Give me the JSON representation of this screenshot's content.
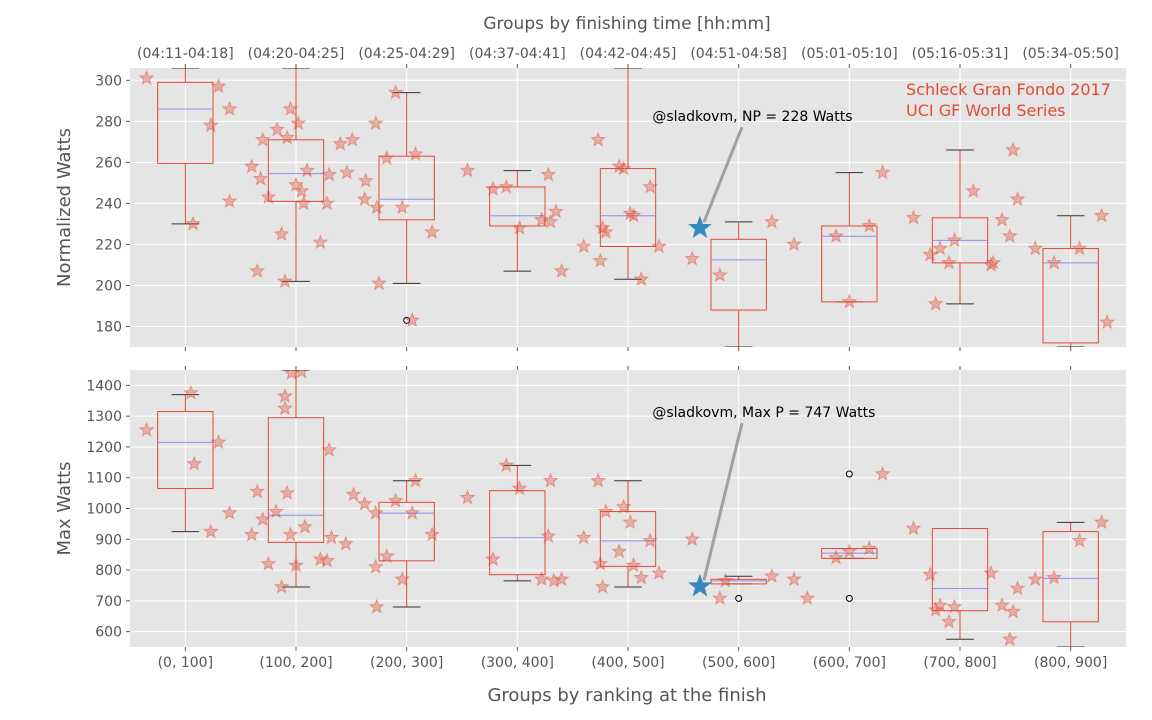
{
  "figure": {
    "top_title": "Groups by finishing time [hh:mm]",
    "bottom_title": "Groups by ranking at the finish",
    "annotation_title_line1": "Schleck Gran Fondo 2017",
    "annotation_title_line2": "UCI GF World Series"
  },
  "chart_data": [
    {
      "type": "box",
      "panel": "top",
      "ylabel": "Normalized Watts",
      "ylim": [
        170,
        306
      ],
      "yticks": [
        180,
        200,
        220,
        240,
        260,
        280,
        300
      ],
      "categories": [
        "(0, 100]",
        "(100, 200]",
        "(200, 300]",
        "(300, 400]",
        "(400, 500]",
        "(500, 600]",
        "(600, 700]",
        "(700, 800]",
        "(800, 900]"
      ],
      "top_categories": [
        "(04:11-04:18]",
        "(04:20-04:25]",
        "(04:25-04:29]",
        "(04:37-04:41]",
        "(04:42-04:45]",
        "(04:51-04:58]",
        "(05:01-05:10]",
        "(05:16-05:31]",
        "(05:34-05:50]"
      ],
      "boxes": [
        {
          "whislo": 230,
          "q1": 259.5,
          "med": 286,
          "q3": 299,
          "whishi": 306,
          "fliers": []
        },
        {
          "whislo": 202,
          "q1": 241,
          "med": 254.5,
          "q3": 271,
          "whishi": 306,
          "fliers": []
        },
        {
          "whislo": 201,
          "q1": 232,
          "med": 242,
          "q3": 263,
          "whishi": 294,
          "fliers": [
            183
          ]
        },
        {
          "whislo": 207,
          "q1": 229,
          "med": 234,
          "q3": 248,
          "whishi": 256,
          "fliers": []
        },
        {
          "whislo": 203,
          "q1": 219,
          "med": 234,
          "q3": 257,
          "whishi": 306,
          "fliers": []
        },
        {
          "whislo": 170,
          "q1": 188,
          "med": 212.5,
          "q3": 222.5,
          "whishi": 231,
          "fliers": []
        },
        {
          "whislo": 192,
          "q1": 192,
          "med": 224,
          "q3": 229,
          "whishi": 255,
          "fliers": []
        },
        {
          "whislo": 191,
          "q1": 211,
          "med": 222,
          "q3": 233,
          "whishi": 266,
          "fliers": []
        },
        {
          "whislo": 170,
          "q1": 172,
          "med": 211,
          "q3": 218,
          "whishi": 234,
          "fliers": []
        }
      ],
      "points": [
        [
          -0.35,
          301
        ],
        [
          0.07,
          230
        ],
        [
          0.23,
          278
        ],
        [
          0.3,
          297
        ],
        [
          0.4,
          286
        ],
        [
          0.4,
          241
        ],
        [
          0.6,
          258
        ],
        [
          0.65,
          207
        ],
        [
          0.7,
          271
        ],
        [
          0.68,
          252
        ],
        [
          0.75,
          243
        ],
        [
          0.83,
          276
        ],
        [
          0.87,
          225
        ],
        [
          0.9,
          202
        ],
        [
          0.92,
          272
        ],
        [
          0.95,
          286
        ],
        [
          1.0,
          249
        ],
        [
          1.02,
          279
        ],
        [
          1.05,
          246
        ],
        [
          1.07,
          240
        ],
        [
          1.1,
          256
        ],
        [
          1.22,
          221
        ],
        [
          1.28,
          240
        ],
        [
          1.3,
          254
        ],
        [
          1.4,
          269
        ],
        [
          1.46,
          255
        ],
        [
          1.51,
          271
        ],
        [
          1.62,
          242
        ],
        [
          1.63,
          251
        ],
        [
          1.72,
          279
        ],
        [
          1.73,
          238
        ],
        [
          1.75,
          201
        ],
        [
          1.82,
          262
        ],
        [
          1.9,
          294
        ],
        [
          1.96,
          238
        ],
        [
          2.05,
          183
        ],
        [
          2.08,
          264
        ],
        [
          2.23,
          226
        ],
        [
          2.55,
          256
        ],
        [
          2.78,
          247
        ],
        [
          2.9,
          248
        ],
        [
          3.02,
          228
        ],
        [
          3.22,
          232
        ],
        [
          3.28,
          254
        ],
        [
          3.3,
          231
        ],
        [
          3.35,
          236
        ],
        [
          3.4,
          207
        ],
        [
          3.6,
          219
        ],
        [
          3.73,
          271
        ],
        [
          3.75,
          212
        ],
        [
          3.77,
          228
        ],
        [
          3.8,
          226
        ],
        [
          3.92,
          258
        ],
        [
          3.96,
          257
        ],
        [
          4.02,
          235
        ],
        [
          4.05,
          234
        ],
        [
          4.12,
          203
        ],
        [
          4.2,
          248
        ],
        [
          4.28,
          219
        ],
        [
          4.58,
          213
        ],
        [
          4.83,
          205
        ],
        [
          5.3,
          231
        ],
        [
          5.5,
          220
        ],
        [
          5.88,
          224
        ],
        [
          6.0,
          192
        ],
        [
          6.18,
          229
        ],
        [
          6.3,
          255
        ],
        [
          6.58,
          233
        ],
        [
          6.73,
          215
        ],
        [
          6.78,
          191
        ],
        [
          6.82,
          218
        ],
        [
          6.9,
          211
        ],
        [
          6.95,
          222
        ],
        [
          7.12,
          246
        ],
        [
          7.28,
          210
        ],
        [
          7.3,
          211
        ],
        [
          7.38,
          232
        ],
        [
          7.45,
          224
        ],
        [
          7.48,
          266
        ],
        [
          7.52,
          242
        ],
        [
          7.68,
          218
        ],
        [
          7.85,
          211
        ],
        [
          8.08,
          218
        ],
        [
          8.28,
          234
        ],
        [
          8.33,
          182
        ]
      ],
      "highlight": {
        "x": 4.65,
        "y": 228
      },
      "annotation": {
        "text": "@sladkovm, NP = 228 Watts",
        "x": 4.22,
        "y": 282
      }
    },
    {
      "type": "box",
      "panel": "bottom",
      "ylabel": "Max Watts",
      "ylim": [
        550,
        1450
      ],
      "yticks": [
        600,
        700,
        800,
        900,
        1000,
        1100,
        1200,
        1300,
        1400
      ],
      "categories": [
        "(0, 100]",
        "(100, 200]",
        "(200, 300]",
        "(300, 400]",
        "(400, 500]",
        "(500, 600]",
        "(600, 700]",
        "(700, 800]",
        "(800, 900]"
      ],
      "boxes": [
        {
          "whislo": 925,
          "q1": 1065,
          "med": 1215,
          "q3": 1315,
          "whishi": 1370,
          "fliers": []
        },
        {
          "whislo": 745,
          "q1": 890,
          "med": 978,
          "q3": 1295,
          "whishi": 1450,
          "fliers": []
        },
        {
          "whislo": 680,
          "q1": 830,
          "med": 985,
          "q3": 1020,
          "whishi": 1090,
          "fliers": []
        },
        {
          "whislo": 765,
          "q1": 785,
          "med": 905,
          "q3": 1058,
          "whishi": 1140,
          "fliers": []
        },
        {
          "whislo": 745,
          "q1": 812,
          "med": 895,
          "q3": 990,
          "whishi": 1090,
          "fliers": []
        },
        {
          "whislo": 755,
          "q1": 755,
          "med": 765,
          "q3": 770,
          "whishi": 780,
          "fliers": [
            708
          ]
        },
        {
          "whislo": 838,
          "q1": 838,
          "med": 855,
          "q3": 870,
          "whishi": 870,
          "fliers": [
            1112,
            708
          ]
        },
        {
          "whislo": 575,
          "q1": 668,
          "med": 740,
          "q3": 935,
          "whishi": 935,
          "fliers": []
        },
        {
          "whislo": 550,
          "q1": 632,
          "med": 773,
          "q3": 925,
          "whishi": 955,
          "fliers": []
        }
      ],
      "points": [
        [
          -0.35,
          1255
        ],
        [
          0.05,
          1375
        ],
        [
          0.08,
          1145
        ],
        [
          0.23,
          925
        ],
        [
          0.3,
          1215
        ],
        [
          0.4,
          985
        ],
        [
          0.6,
          915
        ],
        [
          0.65,
          1055
        ],
        [
          0.7,
          965
        ],
        [
          0.75,
          820
        ],
        [
          0.82,
          990
        ],
        [
          0.87,
          745
        ],
        [
          0.9,
          1365
        ],
        [
          0.9,
          1325
        ],
        [
          0.92,
          1050
        ],
        [
          0.95,
          915
        ],
        [
          0.96,
          1440
        ],
        [
          1.0,
          815
        ],
        [
          1.05,
          1445
        ],
        [
          1.08,
          940
        ],
        [
          1.22,
          835
        ],
        [
          1.28,
          830
        ],
        [
          1.3,
          1190
        ],
        [
          1.32,
          905
        ],
        [
          1.45,
          885
        ],
        [
          1.52,
          1045
        ],
        [
          1.62,
          1015
        ],
        [
          1.72,
          985
        ],
        [
          1.72,
          810
        ],
        [
          1.73,
          680
        ],
        [
          1.82,
          845
        ],
        [
          1.9,
          1025
        ],
        [
          1.96,
          770
        ],
        [
          2.05,
          985
        ],
        [
          2.08,
          1090
        ],
        [
          2.23,
          915
        ],
        [
          2.55,
          1035
        ],
        [
          2.78,
          835
        ],
        [
          2.9,
          1140
        ],
        [
          3.02,
          1065
        ],
        [
          3.22,
          770
        ],
        [
          3.28,
          910
        ],
        [
          3.3,
          1090
        ],
        [
          3.33,
          765
        ],
        [
          3.4,
          770
        ],
        [
          3.6,
          905
        ],
        [
          3.73,
          1090
        ],
        [
          3.75,
          820
        ],
        [
          3.77,
          745
        ],
        [
          3.8,
          990
        ],
        [
          3.92,
          860
        ],
        [
          3.96,
          1005
        ],
        [
          4.02,
          955
        ],
        [
          4.05,
          815
        ],
        [
          4.12,
          775
        ],
        [
          4.2,
          895
        ],
        [
          4.28,
          790
        ],
        [
          4.58,
          900
        ],
        [
          4.83,
          708
        ],
        [
          4.88,
          765
        ],
        [
          5.3,
          780
        ],
        [
          5.5,
          770
        ],
        [
          5.62,
          708
        ],
        [
          5.88,
          840
        ],
        [
          6.0,
          860
        ],
        [
          6.18,
          870
        ],
        [
          6.3,
          1112
        ],
        [
          6.58,
          935
        ],
        [
          6.73,
          785
        ],
        [
          6.78,
          670
        ],
        [
          6.82,
          685
        ],
        [
          6.9,
          632
        ],
        [
          6.95,
          680
        ],
        [
          7.28,
          790
        ],
        [
          7.38,
          685
        ],
        [
          7.45,
          575
        ],
        [
          7.48,
          665
        ],
        [
          7.52,
          740
        ],
        [
          7.68,
          770
        ],
        [
          7.85,
          775
        ],
        [
          8.08,
          895
        ],
        [
          8.28,
          955
        ]
      ],
      "highlight": {
        "x": 4.65,
        "y": 747
      },
      "annotation": {
        "text": "@sladkovm, Max P = 747 Watts",
        "x": 4.22,
        "y": 1310
      }
    }
  ],
  "colors": {
    "axes_bg": "#e5e5e5",
    "grid": "#ffffff",
    "box": "#e24a33",
    "median": "#8c8cf0",
    "whisker": "#333333",
    "star": "#e24a33",
    "highlight": "#348abd",
    "arrow": "#a0a0a0",
    "title": "#e24a33"
  }
}
